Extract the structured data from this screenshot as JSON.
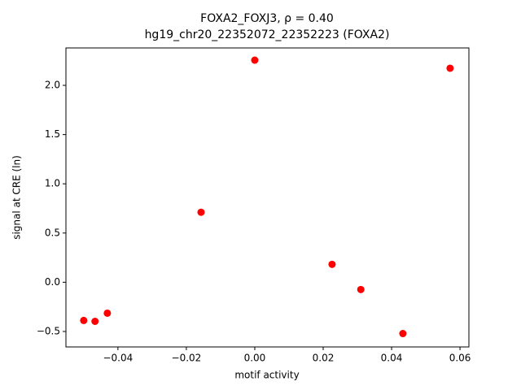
{
  "chart_data": {
    "type": "scatter",
    "title": "FOXA2_FOXJ3, ρ = 0.40",
    "subtitle": "hg19_chr20_22352072_22352223 (FOXA2)",
    "x_label": "motif activity",
    "y_label": "signal at CRE (ln)",
    "color": "#ff0000",
    "x": [
      -0.05,
      -0.0467,
      -0.0431,
      -0.0157,
      0.0,
      0.0226,
      0.031,
      0.0433,
      0.0571
    ],
    "values": [
      -0.388,
      -0.397,
      -0.314,
      0.711,
      2.256,
      0.182,
      -0.074,
      -0.521,
      2.174
    ],
    "xlim": [
      -0.0552,
      0.0626
    ],
    "ylim": [
      -0.657,
      2.38
    ],
    "xticks": [
      {
        "value": -0.04,
        "label": "−0.04"
      },
      {
        "value": -0.02,
        "label": "−0.02"
      },
      {
        "value": 0,
        "label": "0.00"
      },
      0.02,
      0.04,
      0.06
    ],
    "yticks": [
      {
        "value": -0.5,
        "label": "−0.5"
      },
      {
        "value": 0,
        "label": "0.0"
      },
      0.5,
      {
        "value": 1,
        "label": "1.0"
      },
      1.5,
      {
        "value": 2,
        "label": "2.0"
      }
    ]
  }
}
